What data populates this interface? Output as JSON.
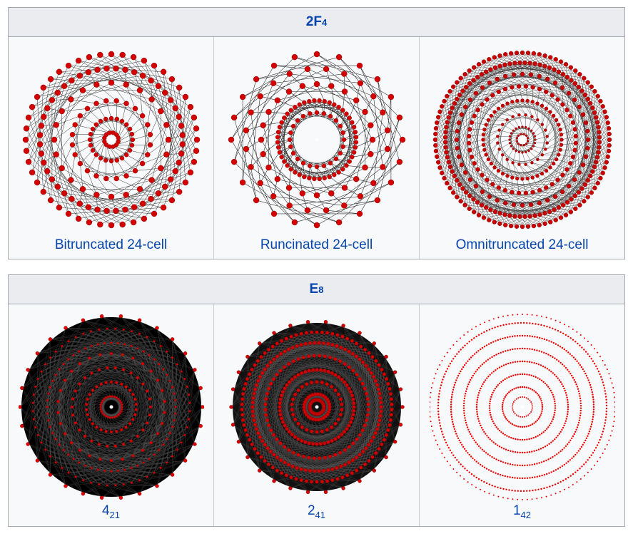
{
  "tables": [
    {
      "header": {
        "base": "2F",
        "sub": "4"
      },
      "cells": [
        {
          "caption": {
            "base": "Bitruncated 24-cell"
          }
        },
        {
          "caption": {
            "base": "Runcinated 24-cell"
          }
        },
        {
          "caption": {
            "base": "Omnitruncated 24-cell"
          }
        }
      ]
    },
    {
      "header": {
        "base": "E",
        "sub": "8"
      },
      "cells": [
        {
          "caption": {
            "base": "4",
            "sub": "21"
          }
        },
        {
          "caption": {
            "base": "2",
            "sub": "41"
          }
        },
        {
          "caption": {
            "base": "1",
            "sub": "42"
          }
        }
      ]
    }
  ]
}
